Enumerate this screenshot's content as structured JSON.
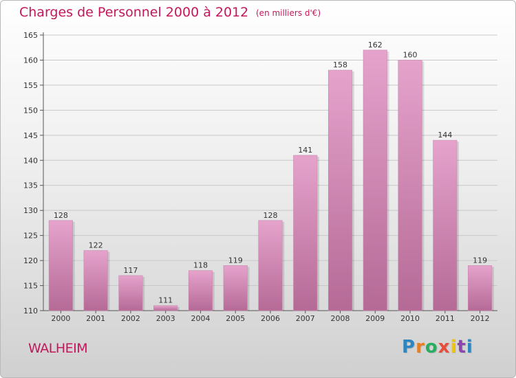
{
  "title": "Charges de Personnel 2000 à 2012",
  "subtitle": "(en milliers d'€)",
  "commune": "WALHEIM",
  "logo": {
    "letters": [
      "P",
      "r",
      "o",
      "x",
      "i",
      "t",
      "i"
    ],
    "colors": [
      "#2e86c1",
      "#e67e22",
      "#27ae60",
      "#e74c3c",
      "#f1c40f",
      "#8e44ad",
      "#2e86c1"
    ]
  },
  "colors": {
    "bar_top": "#e5a3cc",
    "bar_bottom": "#b56a96",
    "accent": "#c2185b"
  },
  "chart_data": {
    "type": "bar",
    "categories": [
      "2000",
      "2001",
      "2002",
      "2003",
      "2004",
      "2005",
      "2006",
      "2007",
      "2008",
      "2009",
      "2010",
      "2011",
      "2012"
    ],
    "values": [
      128,
      122,
      117,
      111,
      118,
      119,
      128,
      141,
      158,
      162,
      160,
      144,
      119
    ],
    "ylim": [
      110,
      165
    ],
    "yticks": [
      110,
      115,
      120,
      125,
      130,
      135,
      140,
      145,
      150,
      155,
      160,
      165
    ],
    "grid": true
  }
}
